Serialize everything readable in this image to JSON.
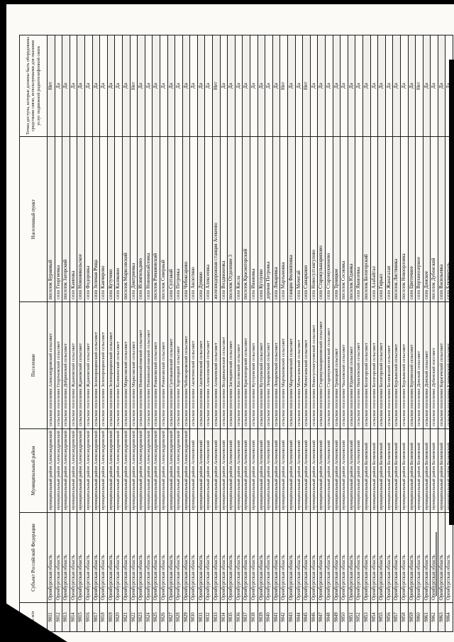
{
  "page": {
    "number": "183"
  },
  "table": {
    "headers": {
      "num": "№ п/п",
      "subject": "Субъект Российской Федерации",
      "district": "Муниципальный район",
      "settlement": "Поселение",
      "locality": "Населенный пункт",
      "access": "Точки доступа, которые должны быть оборудованы средствами связи, используемыми для оказания услуг подвижной радиотелефонной связи"
    },
    "rows": [
      {
        "n": "9811",
        "s": "Оренбургская область",
        "d": "муниципальный район Александровский",
        "p": "сельское поселение Александровский сельсовет",
        "l": "поселок Буранный",
        "a": "Нет"
      },
      {
        "n": "9812",
        "s": "Оренбургская область",
        "d": "муниципальный район Александровский",
        "p": "сельское поселение Георгиевский сельсовет",
        "l": "село Георгиевка",
        "a": "Да"
      },
      {
        "n": "9813",
        "s": "Оренбургская область",
        "d": "муниципальный район Александровский",
        "p": "сельское поселение Добринский сельсовет",
        "l": "поселок Загорский",
        "a": "Да"
      },
      {
        "n": "9814",
        "s": "Оренбургская область",
        "d": "муниципальный район Александровский",
        "p": "сельское поселение Ждановский сельсовет",
        "l": "село Каменка",
        "a": "Да"
      },
      {
        "n": "9815",
        "s": "Оренбургская область",
        "d": "муниципальный район Александровский",
        "p": "сельское поселение Ждановский сельсовет",
        "l": "село Новоникольское",
        "a": "Да"
      },
      {
        "n": "9816",
        "s": "Оренбургская область",
        "d": "муниципальный район Александровский",
        "p": "сельское поселение Ждановский сельсовет",
        "l": "село Федоровка",
        "a": "Да"
      },
      {
        "n": "9817",
        "s": "Оренбургская область",
        "d": "муниципальный район Александровский",
        "p": "сельское поселение Зеленорощинский сельсовет",
        "l": "село Зеленая Роща",
        "a": "Да"
      },
      {
        "n": "9818",
        "s": "Оренбургская область",
        "d": "муниципальный район Александровский",
        "p": "сельское поселение Зеленорощинский сельсовет",
        "l": "село Канчирово",
        "a": "Да"
      },
      {
        "n": "9819",
        "s": "Оренбургская область",
        "d": "муниципальный район Александровский",
        "p": "сельское поселение Зеленорощинский сельсовет",
        "l": "село Кутучево",
        "a": "Да"
      },
      {
        "n": "9820",
        "s": "Оренбургская область",
        "d": "муниципальный район Александровский",
        "p": "сельское поселение Каликинский сельсовет",
        "l": "село Каликино",
        "a": "Да"
      },
      {
        "n": "9821",
        "s": "Оренбургская область",
        "d": "муниципальный район Александровский",
        "p": "сельское поселение Марксовский сельсовет",
        "l": "поселок Марксовский",
        "a": "Да"
      },
      {
        "n": "9822",
        "s": "Оренбургская область",
        "d": "муниципальный район Александровский",
        "p": "сельское поселение Марксовский сельсовет",
        "l": "село Дмитриевка",
        "a": "Нет"
      },
      {
        "n": "9823",
        "s": "Оренбургская область",
        "d": "муниципальный район Александровский",
        "p": "сельское поселение Новомихайловский сельсовет",
        "l": "село Исянгильдино",
        "a": "Да"
      },
      {
        "n": "9824",
        "s": "Оренбургская область",
        "d": "муниципальный район Александровский",
        "p": "сельское поселение Новомихайловский сельсовет",
        "l": "село Новомихайловка",
        "a": "Да"
      },
      {
        "n": "9825",
        "s": "Оренбургская область",
        "d": "муниципальный район Александровский",
        "p": "сельское поселение Романовский сельсовет",
        "l": "поселок Романовский",
        "a": "Да"
      },
      {
        "n": "9826",
        "s": "Оренбургская область",
        "d": "муниципальный район Александровский",
        "p": "сельское поселение Романовский сельсовет",
        "l": "поселок Северный",
        "a": "Да"
      },
      {
        "n": "9827",
        "s": "Оренбургская область",
        "d": "муниципальный район Александровский",
        "p": "сельское поселение Султакаевский сельсовет",
        "l": "село Султакай",
        "a": "Да"
      },
      {
        "n": "9828",
        "s": "Оренбургская область",
        "d": "муниципальный район Александровский",
        "p": "сельское поселение Хортицкий сельсовет",
        "l": "село Петровка",
        "a": "Да"
      },
      {
        "n": "9829",
        "s": "Оренбургская область",
        "d": "муниципальный район Александровский",
        "p": "сельское поселение Чебоксаровский сельсовет",
        "l": "село Чебоксарово",
        "a": "Да"
      },
      {
        "n": "9830",
        "s": "Оренбургская область",
        "d": "муниципальный район Асекеевский",
        "p": "сельское поселение Аксютинский сельсовет",
        "l": "село Аксютино",
        "a": "Да"
      },
      {
        "n": "9831",
        "s": "Оренбургская область",
        "d": "муниципальный район Асекеевский",
        "p": "сельское поселение Аксютинский сельсовет",
        "l": "село Думино",
        "a": "Да"
      },
      {
        "n": "9832",
        "s": "Оренбургская область",
        "d": "муниципальный район Асекеевский",
        "p": "сельское поселение Алексеевский сельсовет",
        "l": "село Алексеевка",
        "a": "Да"
      },
      {
        "n": "9833",
        "s": "Оренбургская область",
        "d": "муниципальный район Асекеевский",
        "p": "сельское поселение Асекеевский сельсовет",
        "l": "железнодорожная станция Асекеево",
        "a": "Нет"
      },
      {
        "n": "9834",
        "s": "Оренбургская область",
        "d": "муниципальный район Асекеевский",
        "p": "сельское поселение Воздвиженский сельсовет",
        "l": "село Воздвиженка",
        "a": "Да"
      },
      {
        "n": "9835",
        "s": "Оренбургская область",
        "d": "муниципальный район Асекеевский",
        "p": "сельское поселение Заглядинский сельсовет",
        "l": "поселок Отделение 3",
        "a": "Да"
      },
      {
        "n": "9836",
        "s": "Оренбургская область",
        "d": "муниципальный район Асекеевский",
        "p": "сельское поселение Кисловский сельсовет",
        "l": "село Кисла",
        "a": "Да"
      },
      {
        "n": "9837",
        "s": "Оренбургская область",
        "d": "муниципальный район Асекеевский",
        "p": "сельское поселение Красногорский сельсовет",
        "l": "поселок Красногорский",
        "a": "Да"
      },
      {
        "n": "9838",
        "s": "Оренбургская область",
        "d": "муниципальный район Асекеевский",
        "p": "сельское поселение Кутлуевский сельсовет",
        "l": "село Ивановка",
        "a": "Да"
      },
      {
        "n": "9839",
        "s": "Оренбургская область",
        "d": "муниципальный район Асекеевский",
        "p": "сельское поселение Кутлуевский сельсовет",
        "l": "село Кутлуево",
        "a": "Да"
      },
      {
        "n": "9840",
        "s": "Оренбургская область",
        "d": "муниципальный район Асекеевский",
        "p": "сельское поселение Лекаревский сельсовет",
        "l": "деревня Петровка",
        "a": "Да"
      },
      {
        "n": "9841",
        "s": "Оренбургская область",
        "d": "муниципальный район Асекеевский",
        "p": "сельское поселение Лекаревский сельсовет",
        "l": "село Лекаревка",
        "a": "Да"
      },
      {
        "n": "9842",
        "s": "Оренбургская область",
        "d": "муниципальный район Асекеевский",
        "p": "сельское поселение Мартыновский сельсовет",
        "l": "село Мартыновка",
        "a": "Нет"
      },
      {
        "n": "9843",
        "s": "Оренбургская область",
        "d": "муниципальный район Асекеевский",
        "p": "сельское поселение Мартыновский сельсовет",
        "l": "станция Филипповка",
        "a": "Да"
      },
      {
        "n": "9844",
        "s": "Оренбургская область",
        "d": "муниципальный район Асекеевский",
        "p": "сельское поселение Мочегаевский сельсовет",
        "l": "село Мочегай",
        "a": "Да"
      },
      {
        "n": "9845",
        "s": "Оренбургская область",
        "d": "муниципальный район Асекеевский",
        "p": "сельское поселение Мочегаевский сельсовет",
        "l": "село Самаркино",
        "a": "Нет"
      },
      {
        "n": "9846",
        "s": "Оренбургская область",
        "d": "муниципальный район Асекеевский",
        "p": "сельское поселение Новосултангуловский сельсовет",
        "l": "село Новосултангулово",
        "a": "Да"
      },
      {
        "n": "9847",
        "s": "Оренбургская область",
        "d": "муниципальный район Асекеевский",
        "p": "сельское поселение Старокульшариповский сельсовет",
        "l": "село Старокульшарипово",
        "a": "Да"
      },
      {
        "n": "9848",
        "s": "Оренбургская область",
        "d": "муниципальный район Асекеевский",
        "p": "сельское поселение Старомукменевский сельсовет",
        "l": "село Старомукменево",
        "a": "Да"
      },
      {
        "n": "9849",
        "s": "Оренбургская область",
        "d": "муниципальный район Асекеевский",
        "p": "сельское поселение Троицкий сельсовет",
        "l": "село Троицкое",
        "a": "Да"
      },
      {
        "n": "9850",
        "s": "Оренбургская область",
        "d": "муниципальный район Асекеевский",
        "p": "сельское поселение Чкаловский сельсовет",
        "l": "поселок Сосновка",
        "a": "Да"
      },
      {
        "n": "9851",
        "s": "Оренбургская область",
        "d": "муниципальный район Асекеевский",
        "p": "сельское поселение Юдинский сельсовет",
        "l": "поселок Юдинка",
        "a": "Да"
      },
      {
        "n": "9852",
        "s": "Оренбургская область",
        "d": "муниципальный район Асекеевский",
        "p": "сельское поселение Яковлевский сельсовет",
        "l": "село Яковлевка",
        "a": "Да"
      },
      {
        "n": "9853",
        "s": "Оренбургская область",
        "d": "муниципальный район Беляевский",
        "p": "сельское поселение Белогорский сельсовет",
        "l": "поселок Белогорский",
        "a": "Да"
      },
      {
        "n": "9854",
        "s": "Оренбургская область",
        "d": "муниципальный район Беляевский",
        "p": "сельское поселение Белогорский сельсовет",
        "l": "село Алабайтал",
        "a": "Да"
      },
      {
        "n": "9855",
        "s": "Оренбургская область",
        "d": "муниципальный район Беляевский",
        "p": "сельское поселение Белогорский сельсовет",
        "l": "село Гирьял",
        "a": "Да"
      },
      {
        "n": "9856",
        "s": "Оренбургская область",
        "d": "муниципальный район Беляевский",
        "p": "сельское поселение Беляевский сельсовет",
        "l": "село Жанаталап",
        "a": "Да"
      },
      {
        "n": "9857",
        "s": "Оренбургская область",
        "d": "муниципальный район Беляевский",
        "p": "сельское поселение Бурлыкский сельсовет",
        "l": "поселок Листвянка",
        "a": "Да"
      },
      {
        "n": "9858",
        "s": "Оренбургская область",
        "d": "муниципальный район Беляевский",
        "p": "сельское поселение Бурлыкский сельсовет",
        "l": "поселок Новоорловка",
        "a": "Да"
      },
      {
        "n": "9859",
        "s": "Оренбургская область",
        "d": "муниципальный район Беляевский",
        "p": "сельское поселение Буртинский сельсовет",
        "l": "село Цветочное",
        "a": "Да"
      },
      {
        "n": "9860",
        "s": "Оренбургская область",
        "d": "муниципальный район Беляевский",
        "p": "сельское поселение Донской сельсовет",
        "l": "село Верхнеозерное",
        "a": "Нет"
      },
      {
        "n": "9861",
        "s": "Оренбургская область",
        "d": "муниципальный район Беляевский",
        "p": "сельское поселение Донской сельсовет",
        "l": "село Донское",
        "a": "Да"
      },
      {
        "n": "9862",
        "s": "Оренбургская область",
        "d": "муниципальный район Беляевский",
        "p": "сельское поселение Дубенский поссовет",
        "l": "поселок Дубенский",
        "a": "Да"
      },
      {
        "n": "9863",
        "s": "Оренбургская область",
        "d": "муниципальный район Беляевский",
        "p": "сельское поселение Карагачский сельсовет",
        "l": "село Васильевка",
        "a": "Да"
      },
      {
        "n": "9864",
        "s": "Оренбургская область",
        "d": "муниципальный район Беляевский",
        "p": "сельское поселение Ключевский сельсовет",
        "l": "село Блюменталь",
        "a": "Да"
      }
    ]
  }
}
